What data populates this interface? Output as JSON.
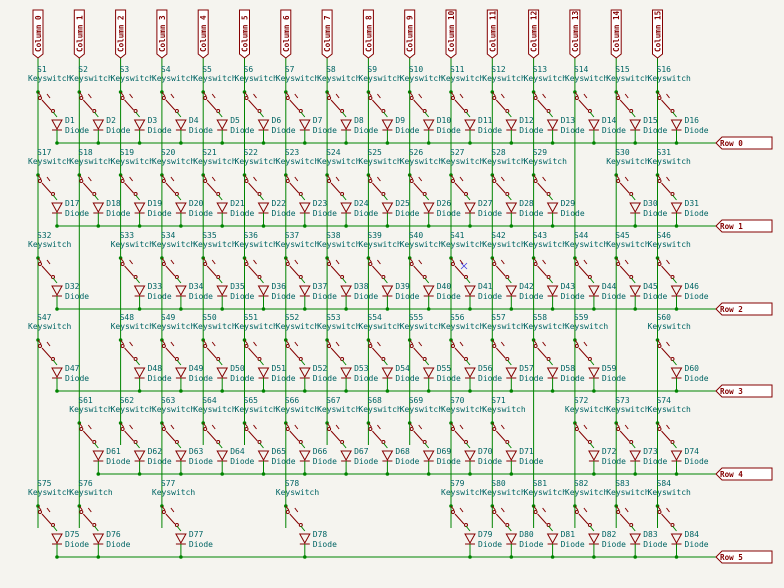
{
  "columns": [
    "Column 0",
    "Column 1",
    "Column 2",
    "Column 3",
    "Column 4",
    "Column 5",
    "Column 6",
    "Column 7",
    "Column 8",
    "Column 9",
    "Column 10",
    "Column 11",
    "Column 12",
    "Column 13",
    "Column 14",
    "Column 15"
  ],
  "rows": [
    "Row 0",
    "Row 1",
    "Row 2",
    "Row 3",
    "Row 4",
    "Row 5"
  ],
  "switch_value": "Keyswitch",
  "diode_value": "Diode",
  "switch_prefix": "S",
  "diode_prefix": "D",
  "grid": [
    [
      1,
      2,
      3,
      4,
      5,
      6,
      7,
      8,
      9,
      10,
      11,
      12,
      13,
      14,
      15,
      16
    ],
    [
      17,
      18,
      19,
      20,
      21,
      22,
      23,
      24,
      25,
      26,
      27,
      28,
      29,
      null,
      30,
      31
    ],
    [
      32,
      null,
      33,
      34,
      35,
      36,
      37,
      38,
      39,
      40,
      41,
      42,
      43,
      44,
      45,
      46
    ],
    [
      47,
      null,
      48,
      49,
      50,
      51,
      52,
      53,
      54,
      55,
      56,
      57,
      58,
      59,
      null,
      60
    ],
    [
      null,
      61,
      62,
      63,
      64,
      65,
      66,
      67,
      68,
      69,
      70,
      71,
      null,
      72,
      73,
      74
    ],
    [
      75,
      76,
      null,
      77,
      null,
      null,
      78,
      null,
      null,
      null,
      79,
      80,
      81,
      82,
      83,
      84
    ]
  ],
  "row_layout": [
    {
      "ref": "above",
      "diode": "right"
    },
    {
      "ref": "above",
      "diode": "right"
    },
    {
      "ref": "above",
      "diode": "right"
    },
    {
      "ref": "above",
      "diode": "right"
    },
    {
      "ref": "left",
      "diode": "right"
    },
    {
      "ref": "left",
      "diode": "right"
    }
  ],
  "colors": {
    "wire": "#008400",
    "symbol": "#840000",
    "reference": "#006464",
    "background": "#f5f4ef",
    "no_connect_marker": "#3c3ce0"
  }
}
